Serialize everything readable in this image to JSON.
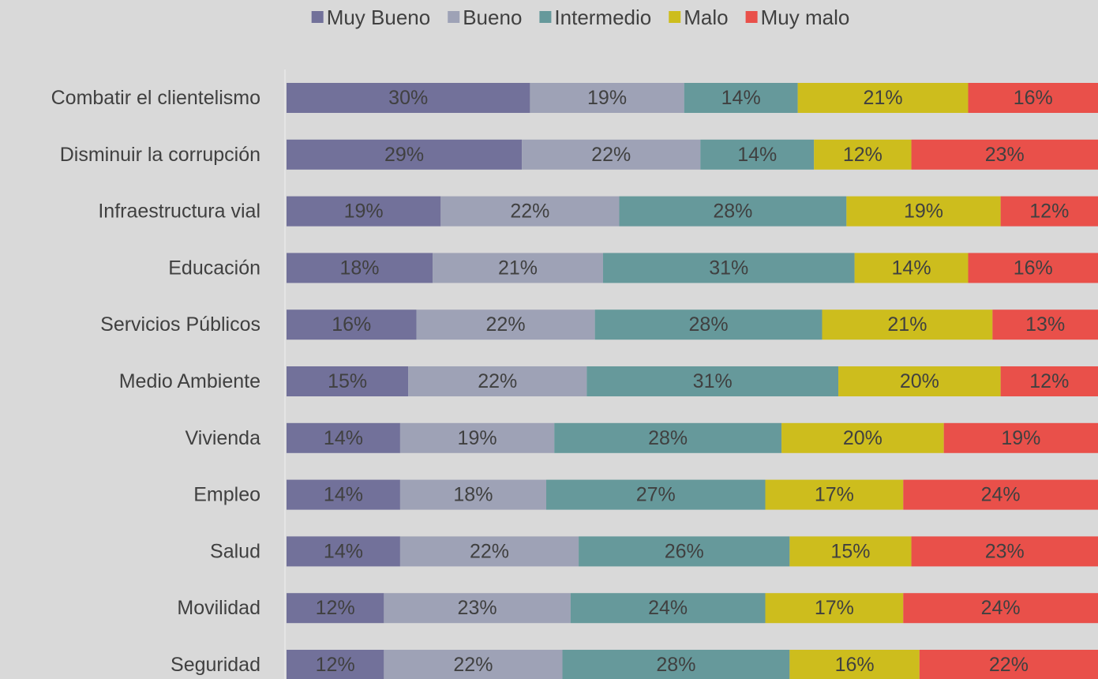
{
  "chart_data": {
    "type": "stacked-bar-horizontal",
    "categories": [
      "Combatir el clientelismo",
      "Disminuir la corrupción",
      "Infraestructura vial",
      "Educación",
      "Servicios Públicos",
      "Medio Ambiente",
      "Vivienda",
      "Empleo",
      "Salud",
      "Movilidad",
      "Seguridad"
    ],
    "legend": "top",
    "series": [
      {
        "name": "Muy Bueno",
        "color": "#72719a",
        "values": [
          30,
          29,
          19,
          18,
          16,
          15,
          14,
          14,
          14,
          12,
          12
        ],
        "value_labels": [
          "30%",
          "29%",
          "19%",
          "18%",
          "16%",
          "15%",
          "14%",
          "14%",
          "14%",
          "12%",
          "12%"
        ]
      },
      {
        "name": "Bueno",
        "color": "#9ea2b6",
        "values": [
          19,
          22,
          22,
          21,
          22,
          22,
          19,
          18,
          22,
          23,
          22
        ],
        "value_labels": [
          "19%",
          "22%",
          "22%",
          "21%",
          "22%",
          "22%",
          "19%",
          "18%",
          "22%",
          "23%",
          "22%"
        ]
      },
      {
        "name": "Intermedio",
        "color": "#66999b",
        "values": [
          14,
          14,
          28,
          31,
          28,
          31,
          28,
          27,
          26,
          24,
          28
        ],
        "value_labels": [
          "14%",
          "14%",
          "28%",
          "31%",
          "28%",
          "31%",
          "28%",
          "27%",
          "26%",
          "24%",
          "28%"
        ]
      },
      {
        "name": "Malo",
        "color": "#cdbd1d",
        "values": [
          21,
          12,
          19,
          14,
          21,
          20,
          20,
          17,
          15,
          17,
          16
        ],
        "value_labels": [
          "21%",
          "12%",
          "19%",
          "14%",
          "21%",
          "20%",
          "20%",
          "17%",
          "15%",
          "17%",
          "16%"
        ]
      },
      {
        "name": "Muy malo",
        "color": "#e9504a",
        "values": [
          16,
          23,
          12,
          16,
          13,
          12,
          19,
          24,
          23,
          24,
          22
        ],
        "value_labels": [
          "16%",
          "23%",
          "12%",
          "16%",
          "13%",
          "12%",
          "19%",
          "24%",
          "23%",
          "24%",
          "22%"
        ]
      }
    ]
  }
}
